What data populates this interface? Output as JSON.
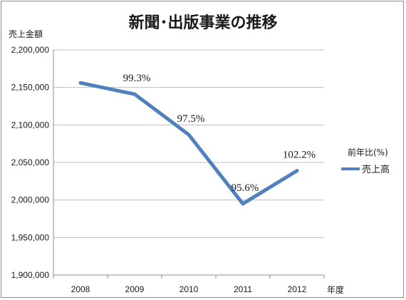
{
  "chart_data": {
    "type": "line",
    "title": "新聞･出版事業の推移",
    "ylabel": "売上金額",
    "xlabel": "年度",
    "categories": [
      "2008",
      "2009",
      "2010",
      "2011",
      "2012"
    ],
    "series": [
      {
        "name": "売上高",
        "values": [
          2156000,
          2141000,
          2087000,
          1995000,
          2039000
        ],
        "color": "#4f81bd"
      }
    ],
    "data_labels": [
      "",
      "99.3%",
      "97.5%",
      "95.6%",
      "102.2%"
    ],
    "ylim": [
      1900000,
      2200000
    ],
    "yticks": [
      1900000,
      1950000,
      2000000,
      2050000,
      2100000,
      2150000,
      2200000
    ],
    "ytick_labels": [
      "1,900,000",
      "1,950,000",
      "2,000,000",
      "2,050,000",
      "2,100,000",
      "2,150,000",
      "2,200,000"
    ],
    "grid": true,
    "legend_title": "前年比(%)",
    "legend_position": "right"
  }
}
